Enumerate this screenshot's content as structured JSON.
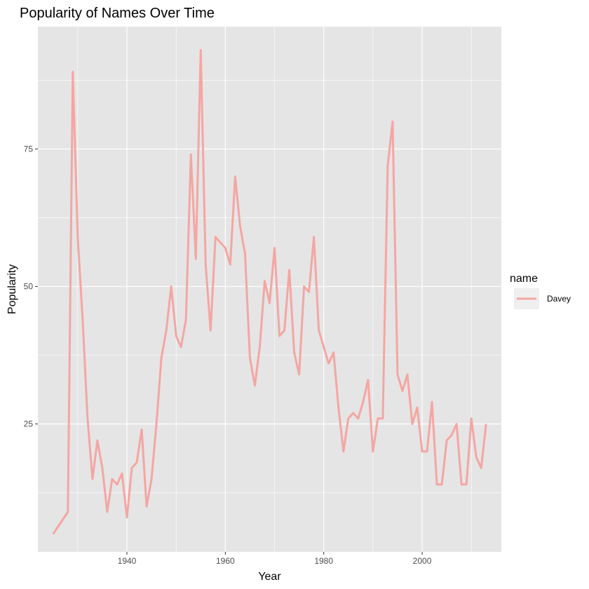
{
  "chart_data": {
    "type": "line",
    "title": "Popularity of Names Over Time",
    "xlabel": "Year",
    "ylabel": "Popularity",
    "xlim": [
      1921.9,
      2016.1
    ],
    "ylim": [
      1.75,
      97.25
    ],
    "x_ticks": [
      1940,
      1960,
      1980,
      2000
    ],
    "y_ticks": [
      25,
      50,
      75
    ],
    "grid": true,
    "legend": {
      "title": "name",
      "position": "right"
    },
    "colors": {
      "panel": "#e5e5e5",
      "grid": "#ffffff",
      "line": "#f4a6a3"
    },
    "series": [
      {
        "name": "Davey",
        "x": [
          1925,
          1928,
          1929,
          1930,
          1931,
          1932,
          1933,
          1934,
          1935,
          1936,
          1937,
          1938,
          1939,
          1940,
          1941,
          1942,
          1943,
          1944,
          1945,
          1946,
          1947,
          1948,
          1949,
          1950,
          1951,
          1952,
          1953,
          1954,
          1955,
          1956,
          1957,
          1958,
          1959,
          1960,
          1961,
          1962,
          1963,
          1964,
          1965,
          1966,
          1967,
          1968,
          1969,
          1970,
          1971,
          1972,
          1973,
          1974,
          1975,
          1976,
          1977,
          1978,
          1979,
          1980,
          1981,
          1982,
          1983,
          1984,
          1985,
          1986,
          1987,
          1988,
          1989,
          1990,
          1991,
          1992,
          1993,
          1994,
          1995,
          1996,
          1997,
          1998,
          1999,
          2000,
          2001,
          2002,
          2003,
          2004,
          2005,
          2006,
          2007,
          2008,
          2009,
          2010,
          2011,
          2012,
          2013
        ],
        "values": [
          5,
          9,
          89,
          59,
          44,
          26,
          15,
          22,
          17,
          9,
          15,
          14,
          16,
          8,
          17,
          18,
          24,
          10,
          15,
          25,
          37,
          42,
          50,
          41,
          39,
          44,
          74,
          55,
          93,
          54,
          42,
          59,
          58,
          57,
          54,
          70,
          61,
          56,
          37,
          32,
          39,
          51,
          47,
          57,
          41,
          42,
          53,
          38,
          34,
          50,
          49,
          59,
          42,
          39,
          36,
          38,
          28,
          20,
          26,
          27,
          26,
          29,
          33,
          20,
          26,
          26,
          72,
          80,
          34,
          31,
          34,
          25,
          28,
          20,
          20,
          29,
          14,
          14,
          22,
          23,
          25,
          14,
          14,
          26,
          19,
          17,
          25
        ]
      }
    ]
  }
}
